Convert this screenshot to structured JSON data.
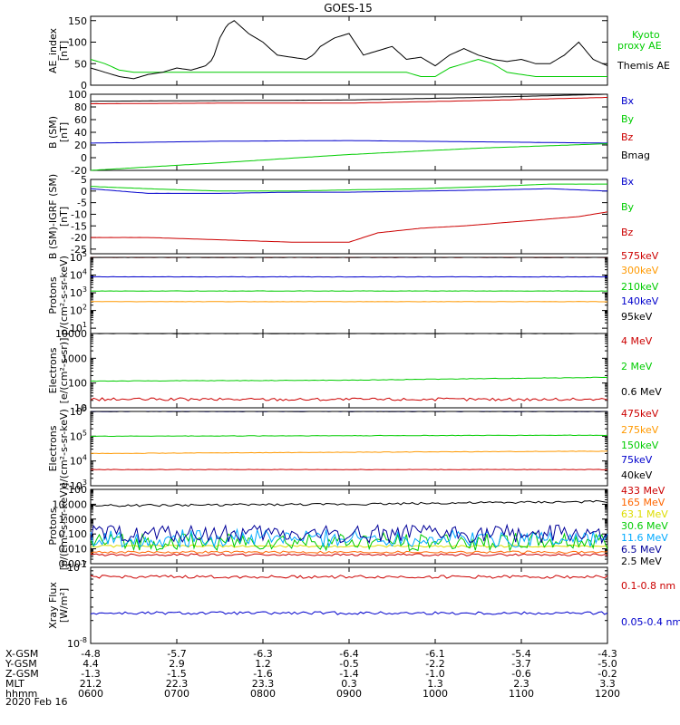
{
  "title": "GOES-15",
  "date_label": "2020 Feb 16",
  "chart_data": [
    {
      "type": "line",
      "ylabel": [
        "AE_index",
        "[nT]"
      ],
      "scale": "linear",
      "ylim": [
        0,
        160
      ],
      "yticks": [
        0,
        50,
        100,
        150
      ],
      "series": [
        {
          "name": "Kyoto proxy AE",
          "color": "#00cc00",
          "x": [
            0,
            10,
            20,
            30,
            40,
            50,
            60,
            70,
            80,
            90,
            100,
            110,
            120,
            130,
            140,
            150,
            160,
            170,
            180,
            190,
            200,
            210,
            220,
            230,
            240,
            250,
            260,
            270,
            280,
            290,
            300,
            310,
            320,
            330,
            340,
            350,
            360
          ],
          "y": [
            60,
            50,
            35,
            30,
            30,
            30,
            30,
            30,
            30,
            30,
            30,
            30,
            30,
            30,
            30,
            30,
            30,
            30,
            30,
            30,
            30,
            30,
            30,
            20,
            20,
            40,
            50,
            60,
            50,
            30,
            25,
            20,
            20,
            20,
            20,
            20,
            20
          ]
        },
        {
          "name": "Themis AE",
          "color": "#000000",
          "x": [
            0,
            10,
            20,
            30,
            40,
            50,
            60,
            70,
            80,
            85,
            90,
            95,
            100,
            110,
            120,
            130,
            140,
            150,
            155,
            160,
            170,
            180,
            190,
            200,
            210,
            220,
            230,
            240,
            250,
            260,
            270,
            280,
            290,
            300,
            310,
            320,
            330,
            340,
            350,
            360
          ],
          "y": [
            40,
            30,
            20,
            15,
            25,
            30,
            40,
            35,
            45,
            60,
            110,
            140,
            150,
            120,
            100,
            70,
            65,
            60,
            70,
            90,
            110,
            120,
            70,
            80,
            90,
            60,
            65,
            45,
            70,
            85,
            70,
            60,
            55,
            60,
            50,
            50,
            70,
            100,
            60,
            45
          ]
        }
      ]
    },
    {
      "type": "line",
      "ylabel": [
        "B (SM)",
        "[nT]"
      ],
      "scale": "linear",
      "ylim": [
        -20,
        100
      ],
      "yticks": [
        -20,
        0,
        20,
        40,
        60,
        80,
        100
      ],
      "series": [
        {
          "name": "Bx",
          "color": "#0000cc",
          "x": [
            0,
            90,
            180,
            270,
            360
          ],
          "y": [
            23,
            26,
            27,
            25,
            23
          ]
        },
        {
          "name": "By",
          "color": "#00cc00",
          "x": [
            0,
            90,
            180,
            270,
            360
          ],
          "y": [
            -20,
            -8,
            5,
            15,
            22
          ]
        },
        {
          "name": "Bz",
          "color": "#cc0000",
          "x": [
            0,
            90,
            180,
            270,
            360
          ],
          "y": [
            85,
            86,
            86,
            90,
            95
          ]
        },
        {
          "name": "Bmag",
          "color": "#000000",
          "x": [
            0,
            90,
            180,
            270,
            360
          ],
          "y": [
            89,
            90,
            91,
            95,
            100
          ]
        }
      ]
    },
    {
      "type": "line",
      "ylabel": [
        "B (SM)-IGRF (SM)",
        "[nT]"
      ],
      "scale": "linear",
      "ylim": [
        -27,
        5
      ],
      "yticks": [
        -25,
        -20,
        -15,
        -10,
        -5,
        0,
        5
      ],
      "series": [
        {
          "name": "Bx",
          "color": "#0000cc",
          "x": [
            0,
            40,
            90,
            140,
            180,
            230,
            280,
            320,
            360
          ],
          "y": [
            1,
            -1,
            -1,
            -0.5,
            -0.5,
            0,
            0.5,
            1,
            0
          ]
        },
        {
          "name": "By",
          "color": "#00cc00",
          "x": [
            0,
            40,
            90,
            140,
            180,
            230,
            280,
            320,
            360
          ],
          "y": [
            2,
            1,
            0,
            0,
            0.5,
            1,
            2,
            3,
            3
          ]
        },
        {
          "name": "Bz",
          "color": "#cc0000",
          "x": [
            0,
            40,
            90,
            140,
            180,
            200,
            230,
            260,
            300,
            340,
            360
          ],
          "y": [
            -20,
            -20,
            -21,
            -22,
            -22,
            -18,
            -16,
            -15,
            -13,
            -11,
            -9
          ]
        }
      ]
    },
    {
      "type": "line",
      "ylabel": [
        "Protons",
        "p/(cm²-s-sr-keV)"
      ],
      "scale": "log",
      "ylim_log10": [
        0.7,
        5
      ],
      "ytick_exponents": [
        1,
        2,
        3,
        4,
        5
      ],
      "series": [
        {
          "name": "575keV",
          "color": "#cc0000",
          "x": [
            0,
            360
          ],
          "y": [
            100000,
            100000
          ]
        },
        {
          "name": "300keV",
          "color": "#ff9900",
          "x": [
            0,
            360
          ],
          "y": [
            316,
            316
          ]
        },
        {
          "name": "210keV",
          "color": "#00cc00",
          "x": [
            0,
            360
          ],
          "y": [
            1259,
            1259
          ]
        },
        {
          "name": "140keV",
          "color": "#0000cc",
          "x": [
            0,
            360
          ],
          "y": [
            7943,
            7943
          ]
        },
        {
          "name": "95keV",
          "color": "#000000",
          "x": [
            0,
            360
          ],
          "y": [
            100000,
            100000
          ]
        }
      ]
    },
    {
      "type": "line",
      "ylabel": [
        "Electrons",
        "[e/(cm²-s-sr)]"
      ],
      "scale": "log",
      "ylim_log10": [
        1,
        4
      ],
      "ytick_labels": [
        [
          "10",
          1
        ],
        [
          "100",
          2
        ],
        [
          "1000",
          3
        ],
        [
          "10000",
          4
        ]
      ],
      "series": [
        {
          "name": "4 MeV",
          "color": "#cc0000",
          "x": [
            0,
            360
          ],
          "y": [
            22,
            22
          ]
        },
        {
          "name": "2 MeV",
          "color": "#00cc00",
          "x": [
            0,
            180,
            360
          ],
          "y": [
            120,
            130,
            170
          ]
        },
        {
          "name": "0.6 MeV",
          "color": "#000000",
          "x": [
            0,
            360
          ],
          "y": [
            10000,
            10000
          ]
        }
      ]
    },
    {
      "type": "line",
      "ylabel": [
        "Electrons",
        "e/(cm²-s-sr-keV)"
      ],
      "scale": "log",
      "ylim_log10": [
        3,
        6
      ],
      "ytick_exponents": [
        3,
        4,
        5,
        6
      ],
      "series": [
        {
          "name": "475keV",
          "color": "#cc0000",
          "x": [
            0,
            360
          ],
          "y": [
            4500,
            4500
          ]
        },
        {
          "name": "275keV",
          "color": "#ff9900",
          "x": [
            0,
            360
          ],
          "y": [
            20000,
            25000
          ]
        },
        {
          "name": "150keV",
          "color": "#00cc00",
          "x": [
            0,
            360
          ],
          "y": [
            100000,
            110000
          ]
        },
        {
          "name": "75keV",
          "color": "#0000cc",
          "x": [
            0,
            360
          ],
          "y": [
            1000000,
            1000000
          ]
        },
        {
          "name": "40keV",
          "color": "#000000",
          "x": [
            0,
            360
          ],
          "y": [
            1000000,
            1000000
          ]
        }
      ]
    },
    {
      "type": "line",
      "ylabel": [
        "Protons",
        "[p/(cm²-s-sr-keV)]"
      ],
      "scale": "log",
      "ylim_log10": [
        -3,
        2
      ],
      "ytick_labels": [
        [
          "0.001",
          -3
        ],
        [
          "0.010",
          -2
        ],
        [
          "0.100",
          -1
        ],
        [
          "1.000",
          0
        ],
        [
          "10.000",
          1
        ],
        [
          "100",
          2
        ]
      ],
      "series": [
        {
          "name": "433 MeV",
          "color": "#cc0000",
          "x": [
            0,
            360
          ],
          "y": [
            0.004,
            0.004
          ]
        },
        {
          "name": "165 MeV",
          "color": "#ff6600",
          "x": [
            0,
            360
          ],
          "y": [
            0.006,
            0.006
          ]
        },
        {
          "name": "63.1 MeV",
          "color": "#dddd00",
          "x": [
            0,
            360
          ],
          "y": [
            0.015,
            0.015
          ]
        },
        {
          "name": "30.6 MeV",
          "color": "#00cc00",
          "x": [
            0,
            360
          ],
          "y": [
            0.03,
            0.03
          ]
        },
        {
          "name": "11.6 MeV",
          "color": "#00aaff",
          "x": [
            0,
            360
          ],
          "y": [
            0.05,
            0.05
          ]
        },
        {
          "name": "6.5 MeV",
          "color": "#000099",
          "x": [
            0,
            360
          ],
          "y": [
            0.1,
            0.1
          ]
        },
        {
          "name": "2.5 MeV",
          "color": "#000000",
          "x": [
            0,
            180,
            360
          ],
          "y": [
            8,
            10,
            15
          ]
        }
      ]
    },
    {
      "type": "line",
      "ylabel": [
        "Xray Flux",
        "[W/m²]"
      ],
      "scale": "log",
      "ylim_log10": [
        -8,
        -7
      ],
      "ytick_exponents": [
        -8,
        -7
      ],
      "series": [
        {
          "name": "0.1-0.8 nm",
          "color": "#cc0000",
          "x": [
            0,
            360
          ],
          "y": [
            7.5e-08,
            7.5e-08
          ]
        },
        {
          "name": "0.05-0.4 nm",
          "color": "#0000cc",
          "x": [
            0,
            360
          ],
          "y": [
            2.5e-08,
            2.5e-08
          ]
        }
      ]
    }
  ],
  "x_axis": {
    "row_labels": [
      "X-GSM",
      "Y-GSM",
      "Z-GSM",
      "MLT",
      "hhmm"
    ],
    "columns": [
      [
        "-4.8",
        "4.4",
        "-1.3",
        "21.2",
        "0600"
      ],
      [
        "-5.7",
        "2.9",
        "-1.5",
        "22.3",
        "0700"
      ],
      [
        "-6.3",
        "1.2",
        "-1.6",
        "23.3",
        "0800"
      ],
      [
        "-6.4",
        "-0.5",
        "-1.4",
        "0.3",
        "0900"
      ],
      [
        "-6.1",
        "-2.2",
        "-1.0",
        "1.3",
        "1000"
      ],
      [
        "-5.4",
        "-3.7",
        "-0.6",
        "2.3",
        "1100"
      ],
      [
        "-4.3",
        "-5.0",
        "-0.2",
        "3.3",
        "1200"
      ]
    ]
  }
}
